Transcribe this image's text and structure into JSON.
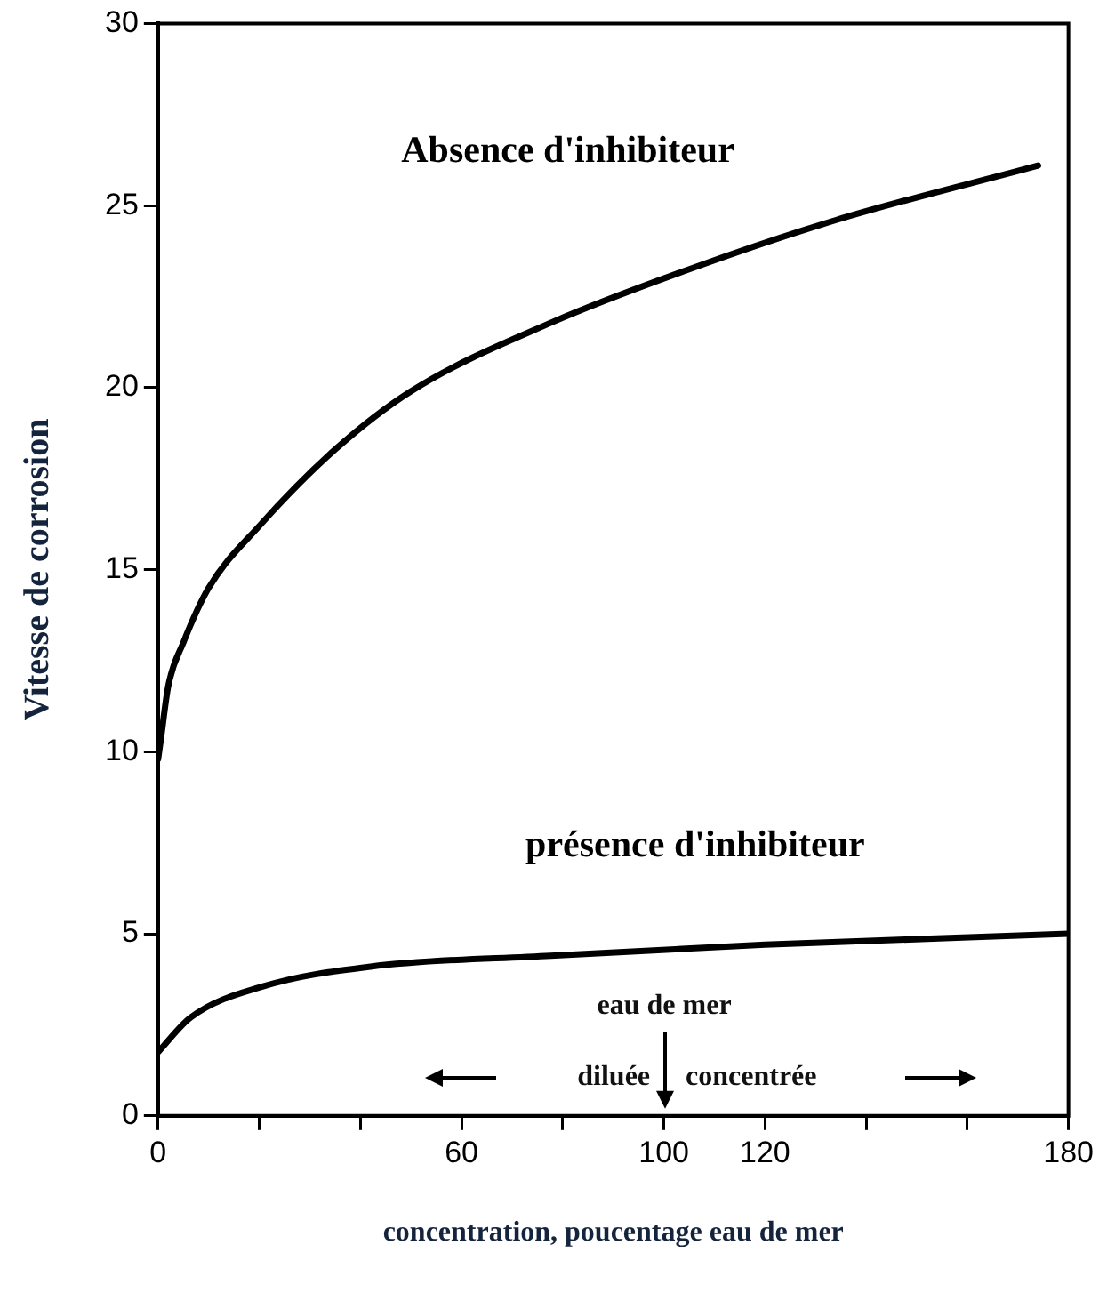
{
  "chart_data": {
    "type": "line",
    "xlabel": "concentration, poucentage eau de mer",
    "ylabel": "Vitesse de corrosion",
    "xlim": [
      0,
      180
    ],
    "ylim": [
      0,
      30
    ],
    "xticks": [
      0,
      {
        "value": 20,
        "label": null
      },
      {
        "value": 40,
        "label": null
      },
      60,
      {
        "value": 80,
        "label": null
      },
      100,
      120,
      {
        "value": 140,
        "label": null
      },
      {
        "value": 160,
        "label": null
      },
      180
    ],
    "yticks": [
      0,
      5,
      10,
      15,
      20,
      25,
      30
    ],
    "grid": false,
    "legend": false,
    "marker": "none",
    "line_style": "solid",
    "series": [
      {
        "name": "Absence d'inhibiteur",
        "color": "#000000",
        "x": [
          0,
          0.5,
          2,
          5,
          10,
          20,
          35,
          50,
          78,
          106,
          134,
          174
        ],
        "values": [
          9.8,
          10.3,
          11.8,
          13,
          14.5,
          16.2,
          18.3,
          19.9,
          21.8,
          23.3,
          24.6,
          26.1
        ]
      },
      {
        "name": "présence d'inhibiteur",
        "color": "#000000",
        "x": [
          0,
          6.4,
          20.6,
          42,
          77.6,
          120,
          180
        ],
        "values": [
          1.75,
          2.7,
          3.55,
          4.1,
          4.4,
          4.7,
          5
        ]
      }
    ],
    "annotations": [
      "eau de mer",
      "diluée",
      "concentrée"
    ]
  }
}
